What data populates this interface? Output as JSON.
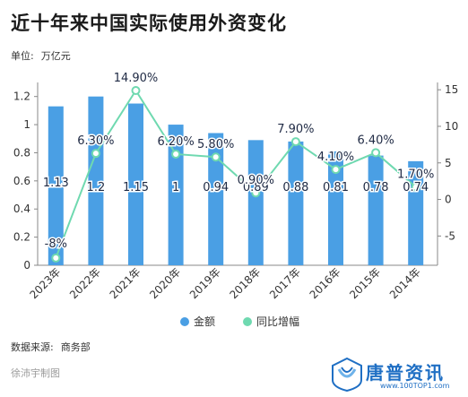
{
  "title": "近十年来中国实际使用外资变化",
  "unit": {
    "label": "单位:",
    "value": "万亿元"
  },
  "source": {
    "label": "数据来源:",
    "value": "商务部"
  },
  "author": "徐沛宇制图",
  "watermark": {
    "name": "唐普资讯",
    "url": "www.100TOP1.com"
  },
  "colors": {
    "bar": "#4a9fe4",
    "line": "#6fd9b0",
    "axis": "#888888",
    "grid": "#e6e6e6"
  },
  "chart_data": {
    "type": "bar",
    "categories": [
      "2023年",
      "2022年",
      "2021年",
      "2020年",
      "2019年",
      "2018年",
      "2017年",
      "2016年",
      "2015年",
      "2014年"
    ],
    "series": [
      {
        "name": "金额",
        "type": "bar",
        "axis": "left",
        "values": [
          1.13,
          1.2,
          1.15,
          1,
          0.94,
          0.89,
          0.88,
          0.81,
          0.78,
          0.74
        ],
        "labels": [
          "1.13",
          "1.2",
          "1.15",
          "1",
          "0.94",
          "0.89",
          "0.88",
          "0.81",
          "0.78",
          "0.74"
        ]
      },
      {
        "name": "同比增幅",
        "type": "line",
        "axis": "right",
        "values": [
          -8,
          6.3,
          14.9,
          6.2,
          5.8,
          0.9,
          7.9,
          4.1,
          6.4,
          1.7
        ],
        "labels": [
          "-8%",
          "6.30%",
          "14.90%",
          "6.20%",
          "5.80%",
          "0.90%",
          "7.90%",
          "4.10%",
          "6.40%",
          "1.70%"
        ]
      }
    ],
    "y_left": {
      "ticks": [
        "0",
        "0.2",
        "0.4",
        "0.6",
        "0.8",
        "1",
        "1.2"
      ],
      "ylim": [
        0,
        1.3
      ]
    },
    "y_right": {
      "ticks": [
        "-5",
        "0",
        "5",
        "10",
        "15"
      ],
      "ylim": [
        -9,
        16
      ]
    },
    "legend": [
      "金额",
      "同比增幅"
    ],
    "legend_position": "bottom",
    "grid": false
  }
}
